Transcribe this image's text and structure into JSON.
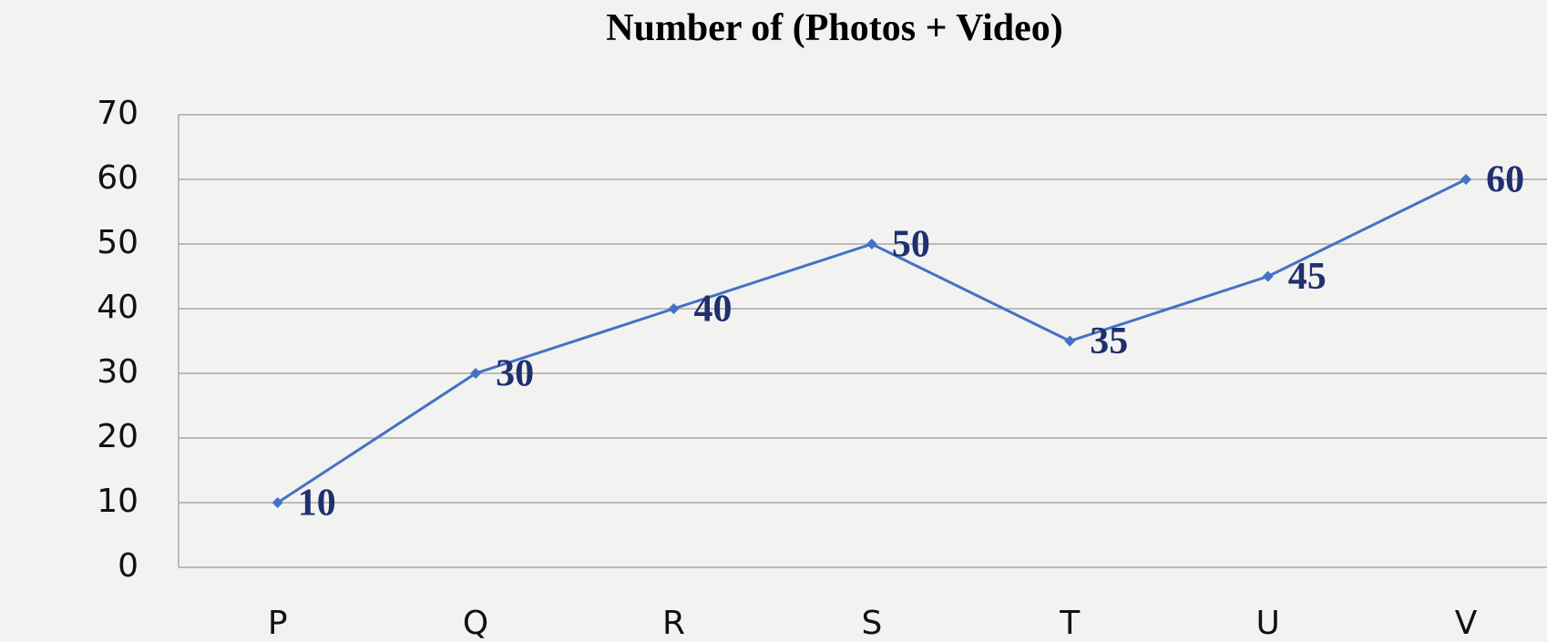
{
  "chart_data": {
    "type": "line",
    "title": "Number of (Photos + Video)",
    "categories": [
      "P",
      "Q",
      "R",
      "S",
      "T",
      "U",
      "V"
    ],
    "values": [
      10,
      30,
      40,
      50,
      35,
      45,
      60
    ],
    "color": "#4472c4",
    "ylim": [
      0,
      70
    ],
    "yticks": [
      0,
      10,
      20,
      30,
      40,
      50,
      60,
      70
    ],
    "grid": true
  }
}
